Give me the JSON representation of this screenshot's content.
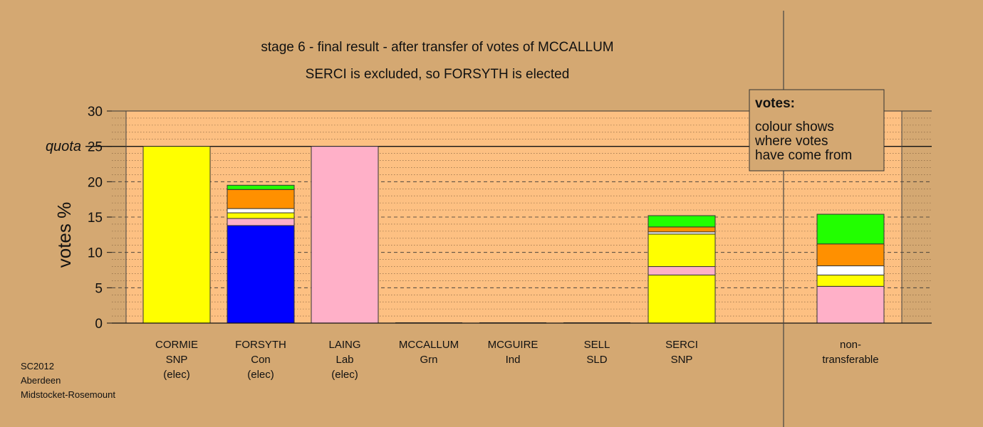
{
  "chart_data": {
    "type": "bar",
    "stacked": true,
    "title": "stage 6 - final result - after transfer of votes of MCCALLUM",
    "subtitle": "SERCI is excluded, so FORSYTH is elected",
    "ylabel": "votes %",
    "ylim": [
      0,
      30
    ],
    "yticks": [
      "0",
      "5",
      "10",
      "15",
      "20",
      "25",
      "30"
    ],
    "quota_label": "quota",
    "quota_value": 25,
    "grid": true,
    "legend": {
      "title": "votes:",
      "lines": [
        "colour shows",
        "where votes",
        "have come from"
      ],
      "placement": "top-right"
    },
    "categories": [
      {
        "lines": [
          "CORMIE",
          "SNP",
          "(elec)"
        ]
      },
      {
        "lines": [
          "FORSYTH",
          "Con",
          "(elec)"
        ]
      },
      {
        "lines": [
          "LAING",
          "Lab",
          "(elec)"
        ]
      },
      {
        "lines": [
          "MCCALLUM",
          "Grn"
        ]
      },
      {
        "lines": [
          "MCGUIRE",
          "Ind"
        ]
      },
      {
        "lines": [
          "SELL",
          "SLD"
        ]
      },
      {
        "lines": [
          "SERCI",
          "SNP"
        ]
      },
      {
        "lines": [
          "non-",
          "transferable"
        ]
      }
    ],
    "stacks": [
      [
        {
          "value": 25.0,
          "color": "#ffff00"
        }
      ],
      [
        {
          "value": 13.8,
          "color": "#0000ff"
        },
        {
          "value": 1.0,
          "color": "#ffb0c8"
        },
        {
          "value": 0.8,
          "color": "#ffff00"
        },
        {
          "value": 0.6,
          "color": "#ffffff"
        },
        {
          "value": 2.7,
          "color": "#ff9000"
        },
        {
          "value": 0.6,
          "color": "#22ff00"
        }
      ],
      [
        {
          "value": 25.0,
          "color": "#ffb0c8"
        }
      ],
      [],
      [],
      [],
      [
        {
          "value": 6.8,
          "color": "#ffff00"
        },
        {
          "value": 1.2,
          "color": "#ffb0c8"
        },
        {
          "value": 4.6,
          "color": "#ffff00"
        },
        {
          "value": 0.3,
          "color": "#ffffff"
        },
        {
          "value": 0.7,
          "color": "#ff9000"
        },
        {
          "value": 1.6,
          "color": "#22ff00"
        }
      ],
      [
        {
          "value": 5.2,
          "color": "#ffb0c8"
        },
        {
          "value": 1.6,
          "color": "#ffff00"
        },
        {
          "value": 1.3,
          "color": "#ffffff"
        },
        {
          "value": 3.1,
          "color": "#ff9000"
        },
        {
          "value": 4.2,
          "color": "#22ff00"
        }
      ]
    ]
  },
  "footer": [
    "SC2012",
    "Aberdeen",
    "Midstocket-Rosemount"
  ],
  "colors": {
    "background": "#d4a872",
    "plot_background": "#fdc082",
    "legend_background": "#d4a872"
  }
}
